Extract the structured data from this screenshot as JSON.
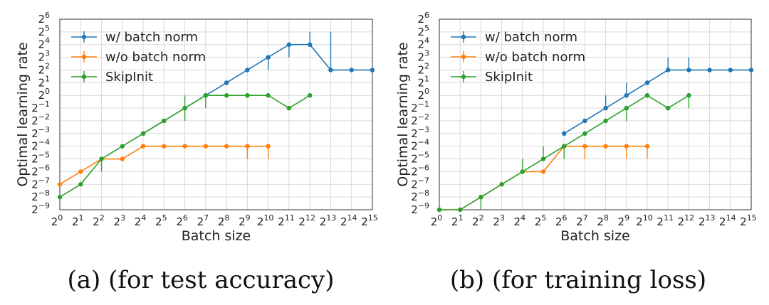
{
  "chart_data": [
    {
      "type": "line",
      "caption": "(a) (for test accuracy)",
      "xlabel": "Batch size",
      "ylabel": "Optimal learning rate",
      "x_scale": "log2",
      "y_scale": "log2",
      "xlim_exp": [
        0,
        15
      ],
      "ylim_exp": [
        -9,
        6
      ],
      "x_tick_exps": [
        0,
        1,
        2,
        3,
        4,
        5,
        6,
        7,
        8,
        9,
        10,
        11,
        12,
        13,
        14,
        15
      ],
      "y_tick_exps": [
        -9,
        -8,
        -7,
        -6,
        -5,
        -4,
        -3,
        -2,
        -1,
        0,
        1,
        2,
        3,
        4,
        5,
        6
      ],
      "grid": true,
      "legend_position": "top-left",
      "series": [
        {
          "name": "w/ batch norm",
          "color": "#1f77b4",
          "x_exp": [
            4,
            5,
            6,
            7,
            8,
            9,
            10,
            11,
            12,
            13,
            14,
            15
          ],
          "y_exp": [
            -3,
            -2,
            -1,
            0,
            1,
            2,
            3,
            4,
            4,
            2,
            2,
            2
          ],
          "err_up": [
            0,
            0,
            0,
            0,
            0,
            0,
            0,
            0,
            1,
            3,
            0,
            0
          ],
          "err_down": [
            0,
            0,
            0,
            0,
            0,
            0,
            1,
            1,
            0,
            0,
            0,
            0
          ]
        },
        {
          "name": "w/o batch norm",
          "color": "#ff7f0e",
          "x_exp": [
            0,
            1,
            2,
            3,
            4,
            5,
            6,
            7,
            8,
            9,
            10
          ],
          "y_exp": [
            -7,
            -6,
            -5,
            -5,
            -4,
            -4,
            -4,
            -4,
            -4,
            -4,
            -4
          ],
          "err_up": [
            0,
            0,
            0,
            0,
            0,
            0,
            0,
            0,
            0,
            0,
            0
          ],
          "err_down": [
            0,
            0,
            0,
            0,
            0,
            0,
            0,
            0,
            0,
            1,
            1
          ]
        },
        {
          "name": "SkipInit",
          "color": "#2ca02c",
          "x_exp": [
            0,
            1,
            2,
            3,
            4,
            5,
            6,
            7,
            8,
            9,
            10,
            11,
            12
          ],
          "y_exp": [
            -8,
            -7,
            -5,
            -4,
            -3,
            -2,
            -1,
            0,
            0,
            0,
            0,
            -1,
            0
          ],
          "err_up": [
            0,
            0,
            0,
            0,
            0,
            0,
            1,
            0,
            0,
            0,
            0,
            0,
            0
          ],
          "err_down": [
            0,
            0,
            1,
            0,
            0,
            0,
            1,
            1,
            0,
            0,
            0,
            0,
            0
          ]
        }
      ]
    },
    {
      "type": "line",
      "caption": "(b) (for training loss)",
      "xlabel": "Batch size",
      "ylabel": "Optimal learning rate",
      "x_scale": "log2",
      "y_scale": "log2",
      "xlim_exp": [
        0,
        15
      ],
      "ylim_exp": [
        -9,
        6
      ],
      "x_tick_exps": [
        0,
        1,
        2,
        3,
        4,
        5,
        6,
        7,
        8,
        9,
        10,
        11,
        12,
        13,
        14,
        15
      ],
      "y_tick_exps": [
        -9,
        -8,
        -7,
        -6,
        -5,
        -4,
        -3,
        -2,
        -1,
        0,
        1,
        2,
        3,
        4,
        5,
        6
      ],
      "grid": true,
      "legend_position": "top-left",
      "series": [
        {
          "name": "w/ batch norm",
          "color": "#1f77b4",
          "x_exp": [
            6,
            7,
            8,
            9,
            10,
            11,
            12,
            13,
            14,
            15
          ],
          "y_exp": [
            -3,
            -2,
            -1,
            0,
            1,
            2,
            2,
            2,
            2,
            2
          ],
          "err_up": [
            0,
            0,
            1,
            1,
            0,
            1,
            1,
            0,
            0,
            0
          ],
          "err_down": [
            0,
            0,
            0,
            0,
            0,
            0,
            0,
            0,
            0,
            0
          ]
        },
        {
          "name": "w/o batch norm",
          "color": "#ff7f0e",
          "x_exp": [
            0,
            1,
            2,
            3,
            4,
            5,
            6,
            7,
            8,
            9,
            10
          ],
          "y_exp": [
            -9,
            -9,
            -8,
            -7,
            -6,
            -6,
            -4,
            -4,
            -4,
            -4,
            -4
          ],
          "err_up": [
            0,
            0,
            0,
            0,
            0,
            0,
            0,
            0,
            0,
            0,
            0
          ],
          "err_down": [
            0,
            0,
            0,
            0,
            0,
            0,
            0,
            1,
            0,
            1,
            1
          ]
        },
        {
          "name": "SkipInit",
          "color": "#2ca02c",
          "x_exp": [
            0,
            1,
            2,
            3,
            4,
            5,
            6,
            7,
            8,
            9,
            10,
            11,
            12
          ],
          "y_exp": [
            -9,
            -9,
            -8,
            -7,
            -6,
            -5,
            -4,
            -3,
            -2,
            -1,
            0,
            -1,
            0
          ],
          "err_up": [
            0,
            0,
            0,
            0,
            1,
            1,
            0,
            0,
            0,
            0,
            0,
            0,
            0
          ],
          "err_down": [
            0,
            0,
            1,
            0,
            0,
            0,
            1,
            0,
            0,
            1,
            0,
            0,
            1
          ]
        }
      ]
    }
  ]
}
